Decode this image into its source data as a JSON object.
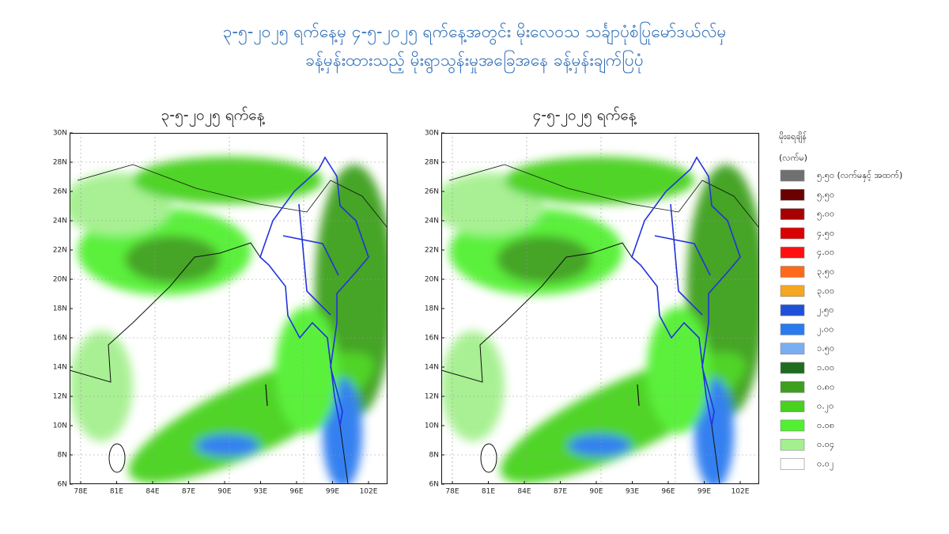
{
  "header": {
    "title_lines": [
      "၃-၅-၂၀၂၅ ရက်နေ့မှ ၄-၅-၂၀၂၅ ရက်နေ့အတွင်း မိုးလေဝသ သင်္ချာပုံစံပြုမော်ဒယ်လ်မှ",
      "ခန့်မှန်းထားသည့် မိုးရွာသွန်းမှုအခြေအနေ ခန့်မှန်းချက်ပြပုံ"
    ]
  },
  "panels": [
    {
      "title": "၃-၅-၂၀၂၅ ရက်နေ့"
    },
    {
      "title": "၄-၅-၂၀၂၅ ရက်နေ့"
    }
  ],
  "axes": {
    "xticks": [
      "78E",
      "81E",
      "84E",
      "87E",
      "90E",
      "93E",
      "96E",
      "99E",
      "102E"
    ],
    "yticks": [
      "30N",
      "28N",
      "26N",
      "24N",
      "22N",
      "20N",
      "18N",
      "16N",
      "14N",
      "12N",
      "10N",
      "8N",
      "6N"
    ]
  },
  "legend": {
    "title": "မိုးရေချိန်",
    "unit": "(လက်မ)",
    "items": [
      {
        "label": "၅.၅၀ (လက်မနှင့် အထက်)",
        "color": "#707070"
      },
      {
        "label": "၅.၅၀",
        "color": "#6b0000"
      },
      {
        "label": "၅.၀၀",
        "color": "#a80000"
      },
      {
        "label": "၄.၅၀",
        "color": "#d80000"
      },
      {
        "label": "၄.၀၀",
        "color": "#ff1010"
      },
      {
        "label": "၃.၅၀",
        "color": "#ff6a1a"
      },
      {
        "label": "၃.၀၀",
        "color": "#f5a623"
      },
      {
        "label": "၂.၅၀",
        "color": "#1e50d8"
      },
      {
        "label": "၂.၀၀",
        "color": "#2a7af0"
      },
      {
        "label": "၁.၅၀",
        "color": "#7aaef2"
      },
      {
        "label": "၁.၀၀",
        "color": "#1f6b1f"
      },
      {
        "label": "၀.၈၀",
        "color": "#3ca01e"
      },
      {
        "label": "၀.၂၀",
        "color": "#46d21e"
      },
      {
        "label": "၀.၀၈",
        "color": "#52f030"
      },
      {
        "label": "၀.၀၄",
        "color": "#a4f08e"
      },
      {
        "label": "၀.၀၂",
        "color": "#ffffff"
      }
    ]
  }
}
